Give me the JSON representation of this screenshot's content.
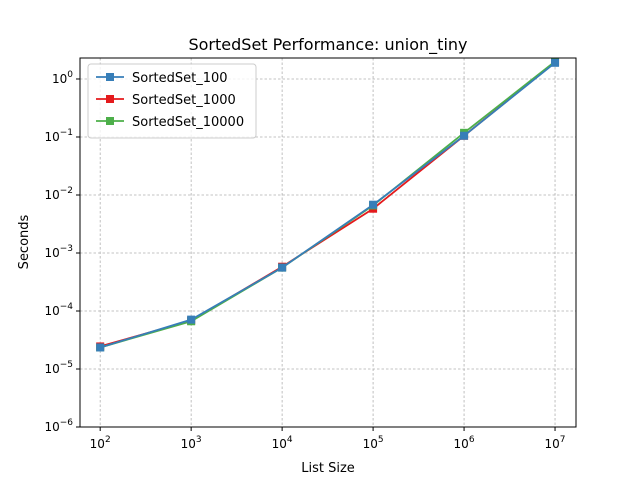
{
  "chart_data": {
    "type": "line",
    "title": "SortedSet Performance: union_tiny",
    "xlabel": "List Size",
    "ylabel": "Seconds",
    "x_scale": "log",
    "y_scale": "log",
    "xlim": [
      60,
      17000000
    ],
    "ylim": [
      1e-06,
      2.3
    ],
    "x_ticks": [
      {
        "value": 100,
        "base": "10",
        "exp": "2"
      },
      {
        "value": 1000,
        "base": "10",
        "exp": "3"
      },
      {
        "value": 10000,
        "base": "10",
        "exp": "4"
      },
      {
        "value": 100000,
        "base": "10",
        "exp": "5"
      },
      {
        "value": 1000000,
        "base": "10",
        "exp": "6"
      },
      {
        "value": 10000000,
        "base": "10",
        "exp": "7"
      }
    ],
    "y_ticks": [
      {
        "value": 1e-06,
        "base": "10",
        "exp": "−6"
      },
      {
        "value": 1e-05,
        "base": "10",
        "exp": "−5"
      },
      {
        "value": 0.0001,
        "base": "10",
        "exp": "−4"
      },
      {
        "value": 0.001,
        "base": "10",
        "exp": "−3"
      },
      {
        "value": 0.01,
        "base": "10",
        "exp": "−2"
      },
      {
        "value": 0.1,
        "base": "10",
        "exp": "−1"
      },
      {
        "value": 1,
        "base": "10",
        "exp": "0"
      }
    ],
    "grid": true,
    "legend_position": "top-left",
    "x": [
      100,
      1000,
      10000,
      100000,
      1000000,
      10000000
    ],
    "series": [
      {
        "name": "SortedSet_1000",
        "color": "#e41a1c",
        "marker": "square",
        "values": [
          2.45e-05,
          6.8e-05,
          0.00058,
          0.0058,
          0.105,
          1.95
        ]
      },
      {
        "name": "SortedSet_10000",
        "color": "#4daf4a",
        "marker": "square",
        "values": [
          2.35e-05,
          6.65e-05,
          0.00056,
          0.0066,
          0.118,
          2.0
        ]
      },
      {
        "name": "SortedSet_100",
        "color": "#377eb8",
        "marker": "square",
        "values": [
          2.35e-05,
          7.1e-05,
          0.00056,
          0.0068,
          0.105,
          1.9
        ]
      }
    ],
    "legend_order": [
      "SortedSet_100",
      "SortedSet_1000",
      "SortedSet_10000"
    ]
  }
}
